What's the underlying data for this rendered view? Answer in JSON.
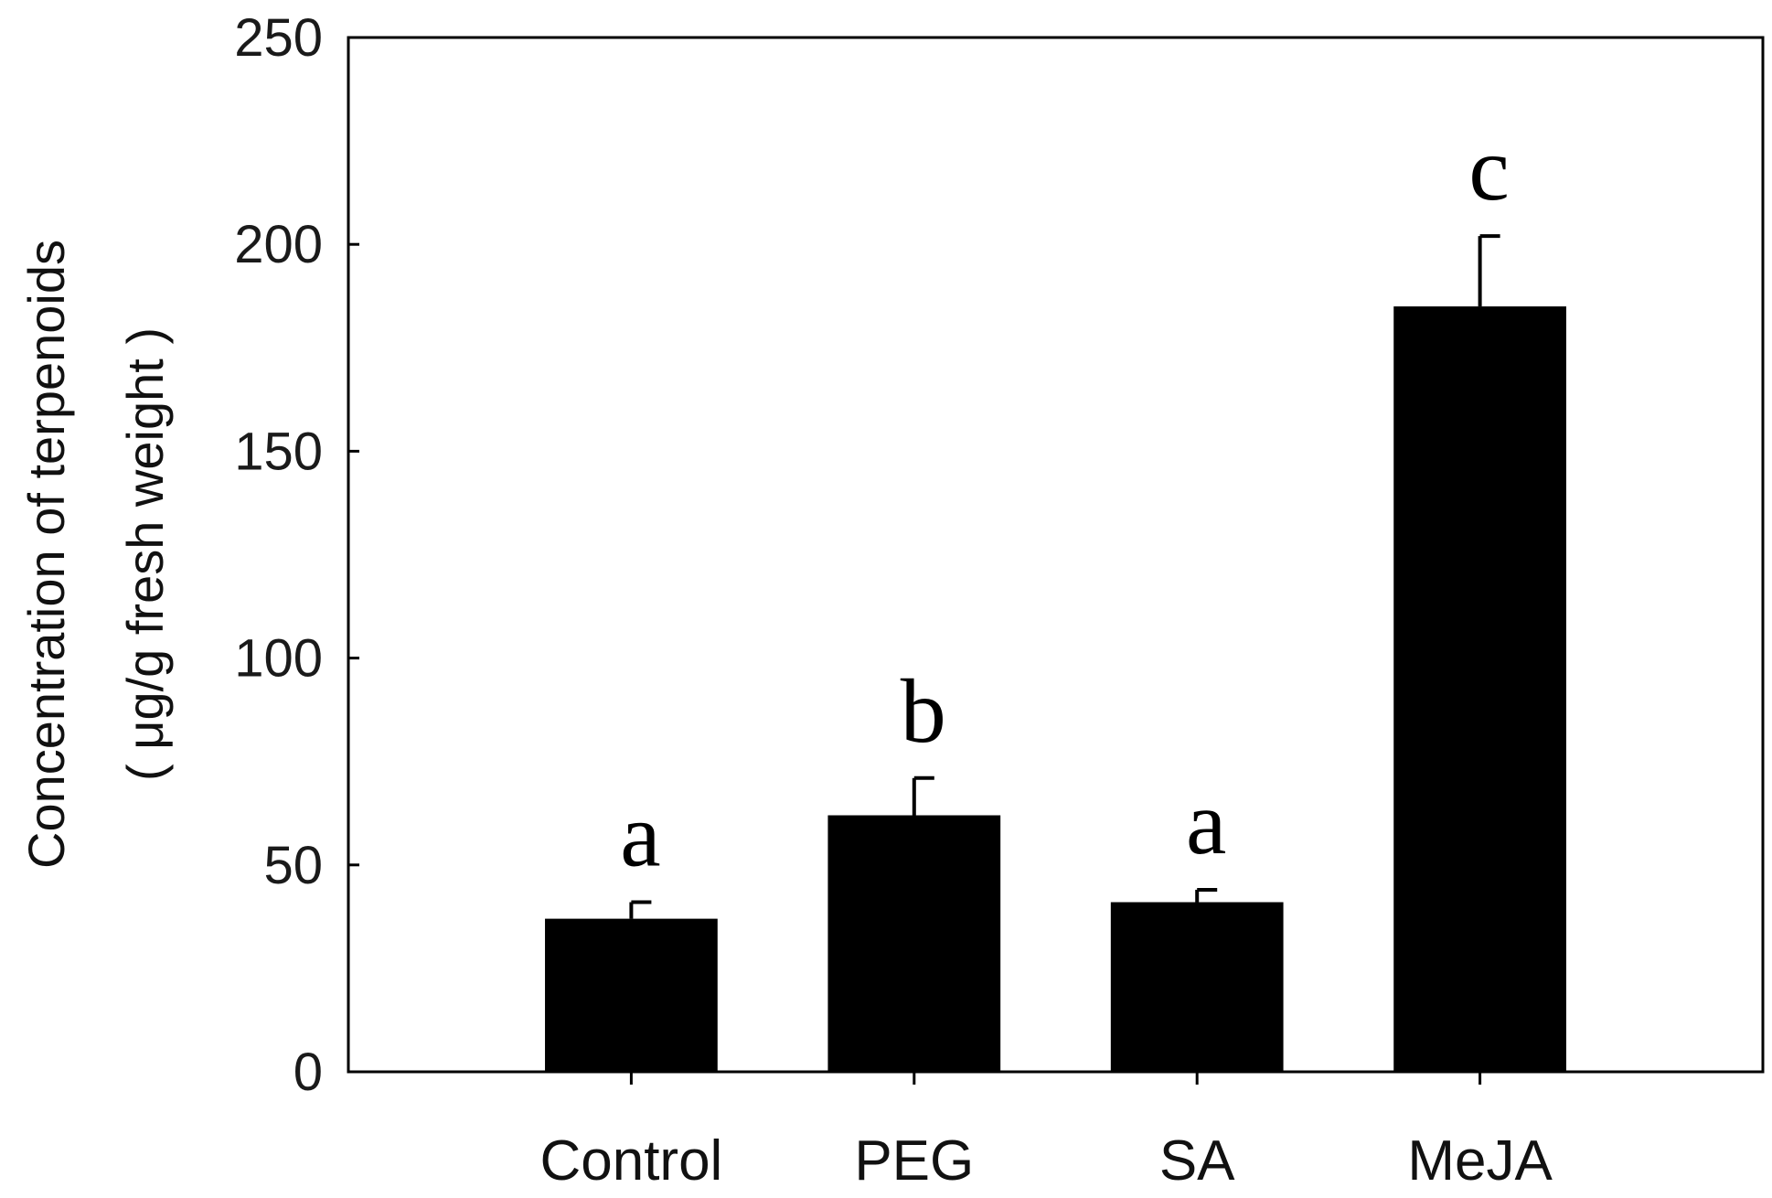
{
  "chart_data": {
    "type": "bar",
    "title": "",
    "xlabel": "",
    "ylabel_lines": [
      "Concentration of terpenoids",
      "( μg/g fresh weight )"
    ],
    "categories": [
      "Control",
      "PEG",
      "SA",
      "MeJA"
    ],
    "values": [
      37,
      62,
      41,
      185
    ],
    "errors": [
      4,
      9,
      3,
      17
    ],
    "significance_letters": [
      "a",
      "b",
      "a",
      "c"
    ],
    "ylim": [
      0,
      250
    ],
    "yticks": [
      0,
      50,
      100,
      150,
      200,
      250
    ],
    "grid": false,
    "bar_color": "#000000"
  }
}
